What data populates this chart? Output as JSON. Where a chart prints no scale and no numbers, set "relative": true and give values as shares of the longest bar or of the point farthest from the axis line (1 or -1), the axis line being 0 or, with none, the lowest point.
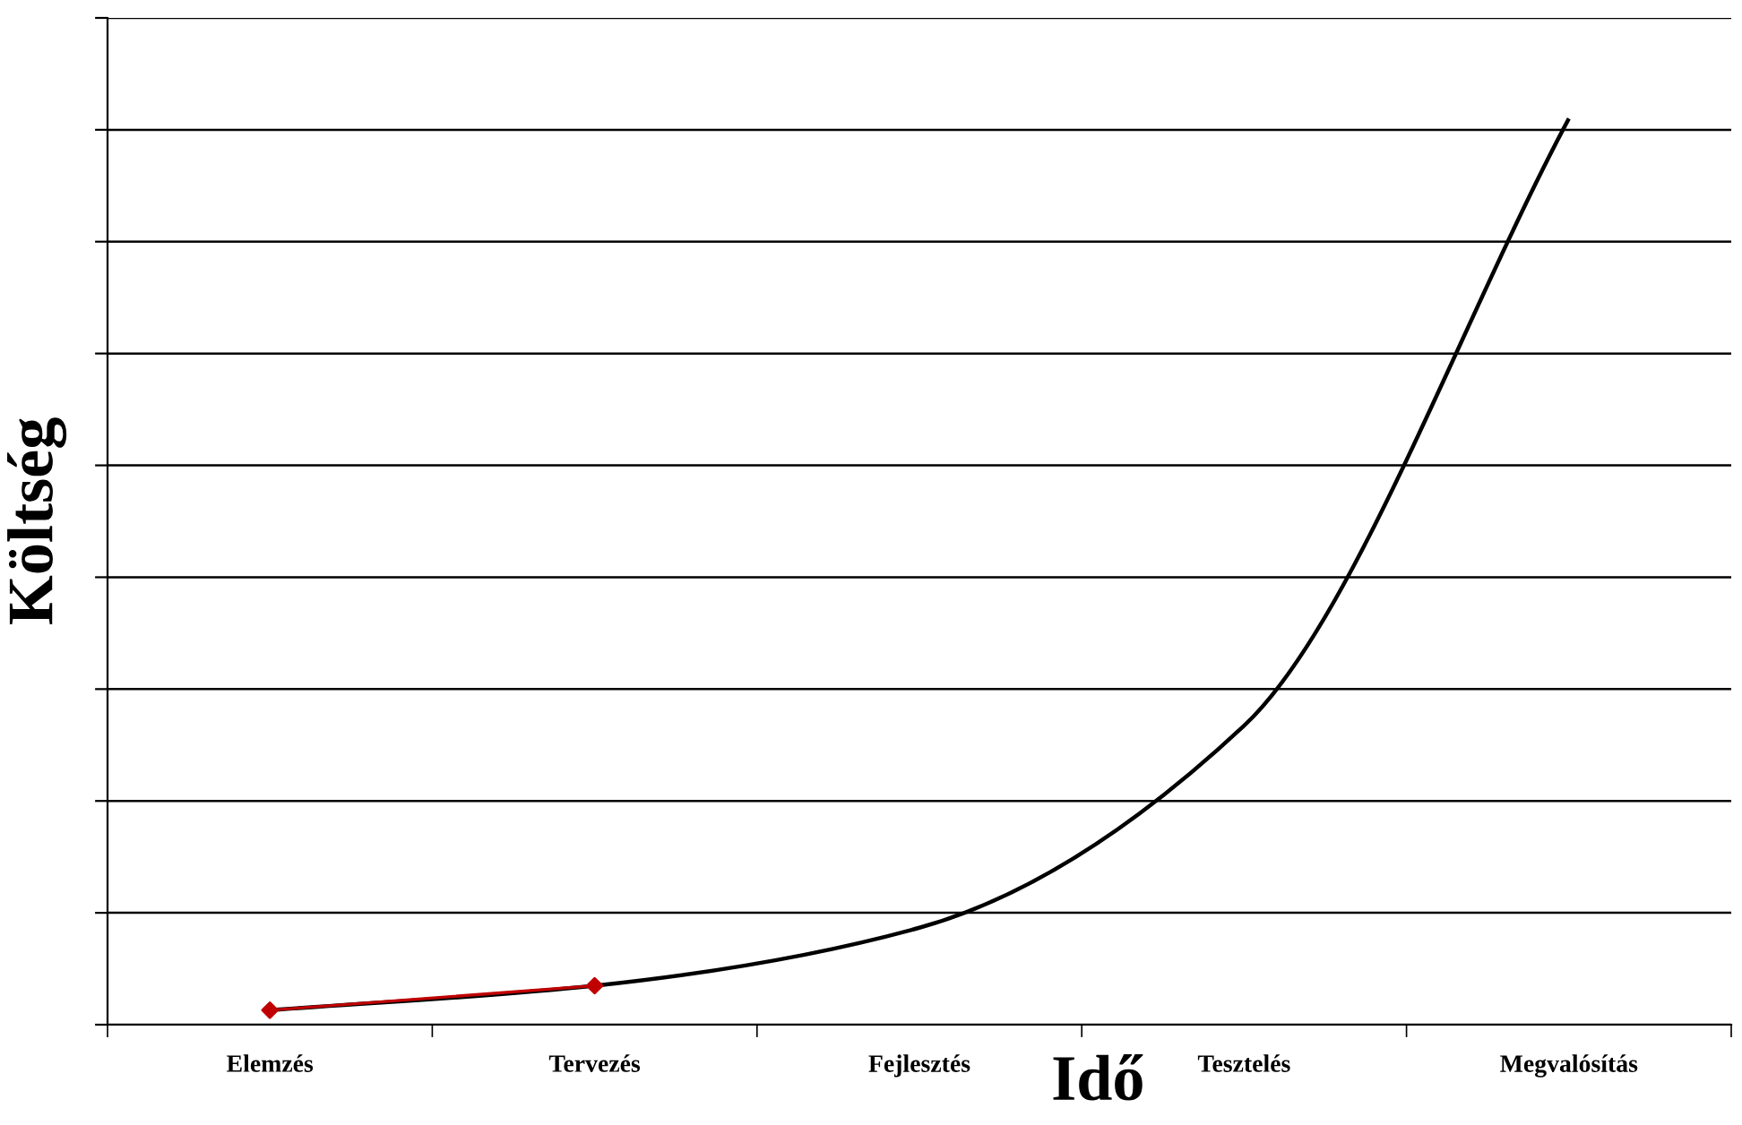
{
  "chart_data": {
    "type": "line",
    "relative": true,
    "xlabel": "Idő",
    "ylabel": "Költség",
    "categories": [
      "Elemzés",
      "Tervezés",
      "Fejlesztés",
      "Tesztelés",
      "Megvalósítás"
    ],
    "grid": "y",
    "legend": false,
    "series": [
      {
        "color": "#000000",
        "values": [
          0.016,
          0.043,
          0.107,
          0.33,
          1
        ],
        "marker": "none"
      },
      {
        "color": "#c00000",
        "values": [
          0.016,
          0.043,
          null,
          null,
          null
        ],
        "marker": "diamond"
      }
    ]
  }
}
